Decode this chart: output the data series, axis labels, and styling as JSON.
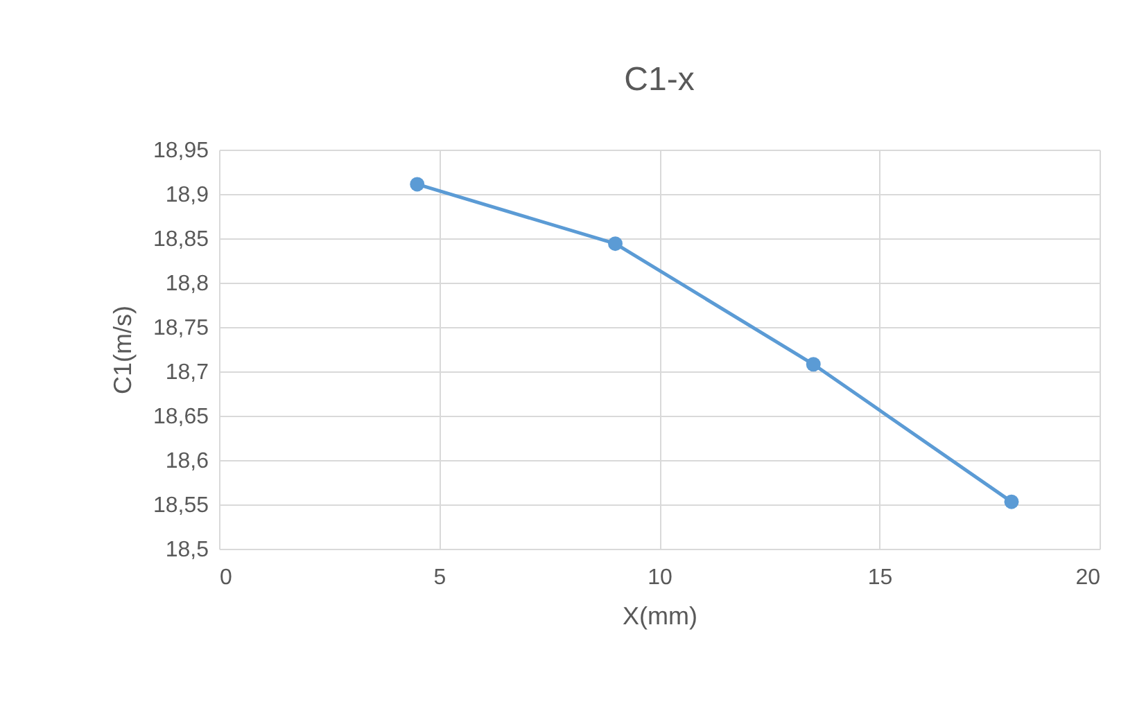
{
  "chart_data": {
    "type": "line",
    "title": "C1-x",
    "xlabel": "X(mm)",
    "ylabel": "C1(m/s)",
    "x": [
      4.5,
      9,
      13.5,
      18
    ],
    "series": [
      {
        "color": "#5b9bd5",
        "values": [
          18.911,
          18.844,
          18.708,
          18.553
        ]
      }
    ],
    "xlim": [
      0,
      20
    ],
    "xticks": [
      0,
      5,
      10,
      15,
      20
    ],
    "ylim": [
      18.5,
      18.95
    ],
    "yticks": [
      {
        "value": 18.5,
        "label": "18,5"
      },
      {
        "value": 18.55,
        "label": "18,55"
      },
      {
        "value": 18.6,
        "label": "18,6"
      },
      {
        "value": 18.65,
        "label": "18,65"
      },
      {
        "value": 18.7,
        "label": "18,7"
      },
      {
        "value": 18.75,
        "label": "18,75"
      },
      {
        "value": 18.8,
        "label": "18,8"
      },
      {
        "value": 18.85,
        "label": "18,85"
      },
      {
        "value": 18.9,
        "label": "18,9"
      },
      {
        "value": 18.95,
        "label": "18,95"
      }
    ],
    "grid": true,
    "marker": "circle",
    "line_style": "solid"
  }
}
